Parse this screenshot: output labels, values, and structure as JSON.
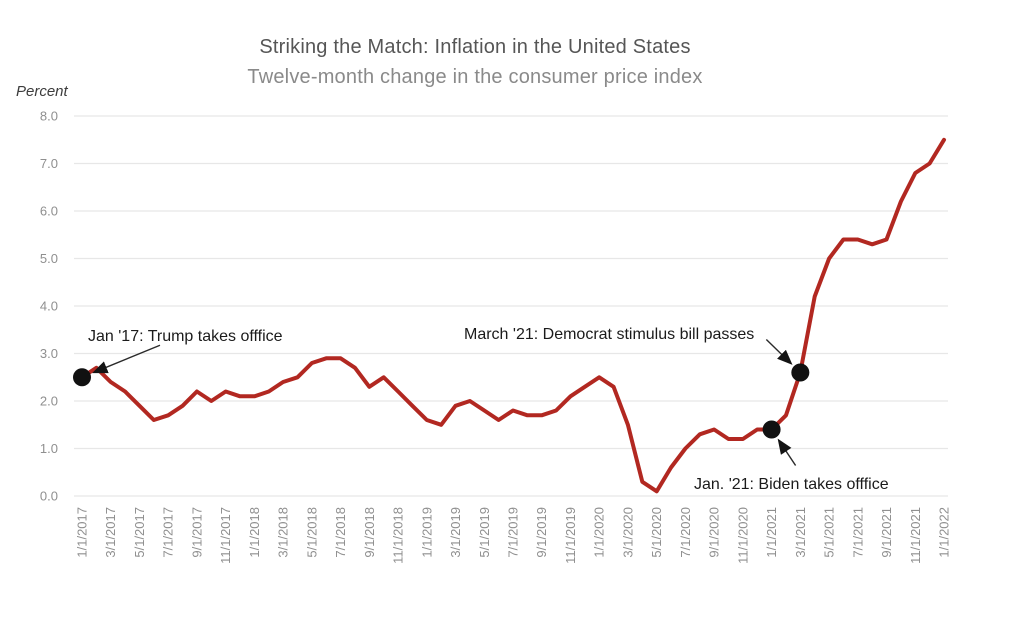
{
  "chart_data": {
    "type": "line",
    "title": "Striking the Match: Inflation in the United States",
    "subtitle": "Twelve-month change in the consumer price index",
    "ylabel": "Percent",
    "xlabel": "",
    "ylim": [
      0.0,
      8.0
    ],
    "y_ticks": [
      "0.0",
      "1.0",
      "2.0",
      "3.0",
      "4.0",
      "5.0",
      "6.0",
      "7.0",
      "8.0"
    ],
    "grid": "horizontal",
    "legend": "none",
    "x_tick_every": 2,
    "x": [
      "1/1/2017",
      "2/1/2017",
      "3/1/2017",
      "4/1/2017",
      "5/1/2017",
      "6/1/2017",
      "7/1/2017",
      "8/1/2017",
      "9/1/2017",
      "10/1/2017",
      "11/1/2017",
      "12/1/2017",
      "1/1/2018",
      "2/1/2018",
      "3/1/2018",
      "4/1/2018",
      "5/1/2018",
      "6/1/2018",
      "7/1/2018",
      "8/1/2018",
      "9/1/2018",
      "10/1/2018",
      "11/1/2018",
      "12/1/2018",
      "1/1/2019",
      "2/1/2019",
      "3/1/2019",
      "4/1/2019",
      "5/1/2019",
      "6/1/2019",
      "7/1/2019",
      "8/1/2019",
      "9/1/2019",
      "10/1/2019",
      "11/1/2019",
      "12/1/2019",
      "1/1/2020",
      "2/1/2020",
      "3/1/2020",
      "4/1/2020",
      "5/1/2020",
      "6/1/2020",
      "7/1/2020",
      "8/1/2020",
      "9/1/2020",
      "10/1/2020",
      "11/1/2020",
      "12/1/2020",
      "1/1/2021",
      "2/1/2021",
      "3/1/2021",
      "4/1/2021",
      "5/1/2021",
      "6/1/2021",
      "7/1/2021",
      "8/1/2021",
      "9/1/2021",
      "10/1/2021",
      "11/1/2021",
      "12/1/2021",
      "1/1/2022"
    ],
    "series": [
      {
        "name": "Twelve-month change in the consumer price index",
        "color": "#b22821",
        "values": [
          2.5,
          2.7,
          2.4,
          2.2,
          1.9,
          1.6,
          1.7,
          1.9,
          2.2,
          2.0,
          2.2,
          2.1,
          2.1,
          2.2,
          2.4,
          2.5,
          2.8,
          2.9,
          2.9,
          2.7,
          2.3,
          2.5,
          2.2,
          1.9,
          1.6,
          1.5,
          1.9,
          2.0,
          1.8,
          1.6,
          1.8,
          1.7,
          1.7,
          1.8,
          2.1,
          2.3,
          2.5,
          2.3,
          1.5,
          0.3,
          0.1,
          0.6,
          1.0,
          1.3,
          1.4,
          1.2,
          1.2,
          1.4,
          1.4,
          1.7,
          2.6,
          4.2,
          5.0,
          5.4,
          5.4,
          5.3,
          5.4,
          6.2,
          6.8,
          7.0,
          7.5
        ]
      }
    ],
    "annotations": [
      {
        "label": "Jan '17: Trump takes offfice",
        "x": "1/1/2017",
        "month_index": 0,
        "value": 2.5,
        "dot_color": "#111111"
      },
      {
        "label": "March '21: Democrat stimulus bill passes",
        "x": "3/1/2021",
        "month_index": 50,
        "value": 2.6,
        "dot_color": "#111111"
      },
      {
        "label": "Jan. '21: Biden takes offfice",
        "x": "1/1/2021",
        "month_index": 48,
        "value": 1.4,
        "dot_color": "#111111"
      }
    ],
    "colors": {
      "line": "#b22821",
      "gridline": "#e7e7e7",
      "tick_label": "#8f8f8f",
      "title": "#565656",
      "subtitle": "#8a8a8a",
      "annotation_text": "#1b1b1b",
      "background": "#ffffff"
    }
  }
}
